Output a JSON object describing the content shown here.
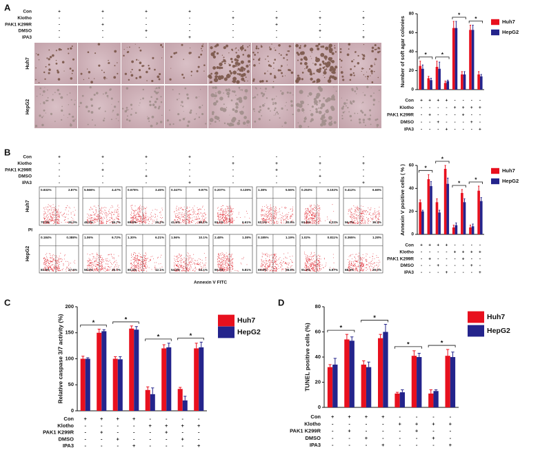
{
  "panel_labels": [
    "A",
    "B",
    "C",
    "D"
  ],
  "row_labels": [
    "Huh7",
    "HepG2"
  ],
  "treatments": {
    "labels": [
      "Con",
      "Klotho",
      "PAK1 K299R",
      "DMSO",
      "IPA3"
    ],
    "signs": [
      [
        "+",
        "+",
        "+",
        "+",
        "-",
        "-",
        "-",
        "-"
      ],
      [
        "-",
        "-",
        "-",
        "-",
        "+",
        "+",
        "+",
        "+"
      ],
      [
        "-",
        "+",
        "-",
        "-",
        "-",
        "+",
        "-",
        "-"
      ],
      [
        "-",
        "-",
        "+",
        "-",
        "-",
        "-",
        "+",
        "-"
      ],
      [
        "-",
        "-",
        "-",
        "+",
        "-",
        "-",
        "-",
        "+"
      ]
    ]
  },
  "flow": {
    "y_label": "PI",
    "x_label": "Annexin V FITC",
    "quadrants": [
      [
        [
          "0.832%",
          "2.87%",
          "70.3%",
          "26.0%"
        ],
        [
          "5.566%",
          "4.47%",
          "48.2%",
          "46.7%"
        ],
        [
          "0.675%",
          "3.45%",
          "69.6%",
          "26.2%"
        ],
        [
          "0.347%",
          "9.97%",
          "41.6%",
          "48.1%"
        ],
        [
          "0.207%",
          "0.139%",
          "92.1%",
          "6.61%"
        ],
        [
          "1.38%",
          "5.56%",
          "62.1%",
          "30.9%"
        ],
        [
          "0.253%",
          "0.102%",
          "93.4%",
          "6.22%"
        ],
        [
          "0.412%",
          "6.68%",
          "56.7%",
          "36.2%"
        ]
      ],
      [
        [
          "0.184%",
          "0.388%",
          "81.8%",
          "17.6%"
        ],
        [
          "1.06%",
          "6.72%",
          "56.5%",
          "35.7%"
        ],
        [
          "1.30%",
          "6.21%",
          "80.4%",
          "12.1%"
        ],
        [
          "1.56%",
          "10.1%",
          "54.2%",
          "34.1%"
        ],
        [
          "2.48%",
          "1.38%",
          "90.3%",
          "5.81%"
        ],
        [
          "0.185%",
          "1.19%",
          "69.8%",
          "28.8%"
        ],
        [
          "1.02%",
          "0.811%",
          "91.3%",
          "5.97%"
        ],
        [
          "0.365%",
          "1.28%",
          "68.3%",
          "29.0%"
        ]
      ]
    ]
  },
  "chart_data": [
    {
      "type": "bar",
      "y_label": "Number of soft agar colonies",
      "categories": [
        null,
        null,
        null,
        null,
        null,
        null,
        null,
        null
      ],
      "ylim": [
        0,
        80
      ],
      "yticks": [
        0,
        20,
        40,
        60,
        80
      ],
      "annotations": [
        "*",
        "*",
        "*",
        "*"
      ],
      "series": [
        {
          "name": "Huh7",
          "color": "#e8101e",
          "values": [
            25,
            12,
            24,
            7,
            65,
            16,
            63,
            16
          ],
          "errors": [
            5,
            2,
            6,
            2,
            7,
            3,
            5,
            3
          ]
        },
        {
          "name": "HepG2",
          "color": "#24248c",
          "values": [
            22,
            10,
            22,
            9,
            65,
            16,
            63,
            14
          ],
          "errors": [
            4,
            2,
            7,
            1,
            7,
            3,
            5,
            2
          ]
        }
      ]
    },
    {
      "type": "bar",
      "y_label": "Annexin V positive cells ( % )",
      "categories": [
        null,
        null,
        null,
        null,
        null,
        null,
        null,
        null
      ],
      "ylim": [
        0,
        60
      ],
      "yticks": [
        0,
        20,
        40,
        60
      ],
      "annotations": [
        "*",
        "*",
        "*",
        "*"
      ],
      "series": [
        {
          "name": "Huh7",
          "color": "#e8101e",
          "values": [
            28,
            48,
            28,
            57,
            6,
            36,
            6,
            38
          ],
          "errors": [
            2,
            4,
            3,
            3,
            2,
            3,
            2,
            4
          ]
        },
        {
          "name": "HepG2",
          "color": "#24248c",
          "values": [
            20,
            42,
            19,
            44,
            8,
            28,
            7,
            29
          ],
          "errors": [
            1,
            4,
            2,
            5,
            2,
            3,
            2,
            3
          ]
        }
      ]
    },
    {
      "type": "bar",
      "y_label": "Relative caspase 3/7 activity (%)",
      "categories": [
        null,
        null,
        null,
        null,
        null,
        null,
        null,
        null
      ],
      "ylim": [
        0,
        200
      ],
      "yticks": [
        0,
        50,
        100,
        150,
        200
      ],
      "annotations": [
        "*",
        "*",
        "*",
        "*"
      ],
      "series": [
        {
          "name": "Huh7",
          "color": "#e8101e",
          "values": [
            100,
            150,
            100,
            158,
            40,
            120,
            42,
            120
          ],
          "errors": [
            5,
            7,
            4,
            5,
            6,
            7,
            3,
            10
          ]
        },
        {
          "name": "HepG2",
          "color": "#24248c",
          "values": [
            100,
            153,
            99,
            156,
            32,
            122,
            20,
            122
          ],
          "errors": [
            2,
            3,
            5,
            6,
            12,
            8,
            8,
            10
          ]
        }
      ]
    },
    {
      "type": "bar",
      "y_label": "TUNEL positive cells (%)",
      "categories": [
        null,
        null,
        null,
        null,
        null,
        null,
        null,
        null
      ],
      "ylim": [
        0,
        80
      ],
      "yticks": [
        0,
        20,
        40,
        60,
        80
      ],
      "annotations": [
        "*",
        "*",
        "*",
        "*"
      ],
      "series": [
        {
          "name": "Huh7",
          "color": "#e8101e",
          "values": [
            32,
            54,
            34,
            55,
            11,
            41,
            11,
            41
          ],
          "errors": [
            2,
            4,
            3,
            3,
            1,
            4,
            3,
            5
          ]
        },
        {
          "name": "HepG2",
          "color": "#24248c",
          "values": [
            34,
            53,
            32,
            60,
            12,
            40,
            13,
            40
          ],
          "errors": [
            5,
            3,
            4,
            6,
            2,
            3,
            1,
            4
          ]
        }
      ]
    }
  ]
}
